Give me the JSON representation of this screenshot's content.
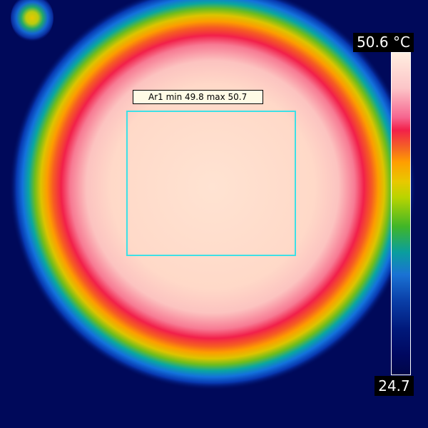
{
  "roi": {
    "label": "Ar1 min 49.8 max 50.7",
    "name": "Ar1",
    "min_value": 49.8,
    "max_value": 50.7
  },
  "scale": {
    "max_label": "50.6 °C",
    "min_label": "24.7",
    "max_value": 50.6,
    "min_value": 24.7,
    "unit": "°C"
  },
  "colors": {
    "background": "#00095a",
    "roi_box": "#3de0e6",
    "hot_core": "#ffe3d2",
    "ring_red": "#f2204a"
  }
}
